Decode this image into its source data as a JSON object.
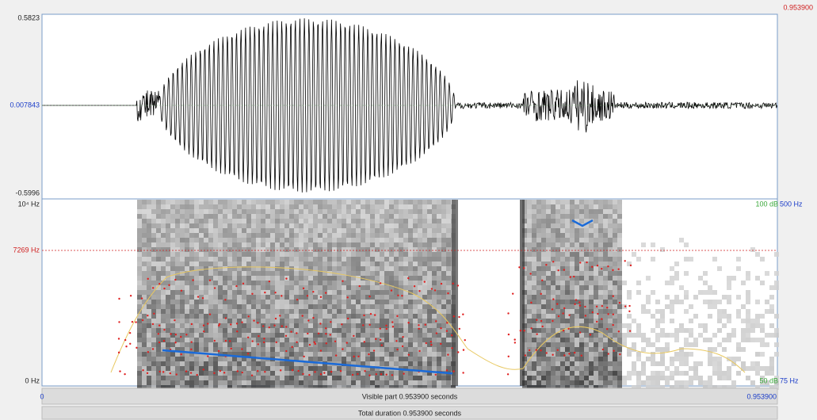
{
  "header": {
    "total_end": "0.953900"
  },
  "waveform": {
    "max": "0.5823",
    "cursor": "0.007843",
    "min": "-0.5996"
  },
  "spectrogram": {
    "top": "10⁴ Hz",
    "cursor": "7269 Hz",
    "bottom": "0 Hz",
    "intensity_top": "100 dB",
    "pitch_top": "500 Hz",
    "intensity_bottom": "50 dB",
    "pitch_bottom": "75 Hz"
  },
  "time_bar": {
    "start": "0",
    "visible": "Visible part 0.953900 seconds",
    "end": "0.953900"
  },
  "total_bar": {
    "label": "Total duration 0.953900 seconds"
  }
}
